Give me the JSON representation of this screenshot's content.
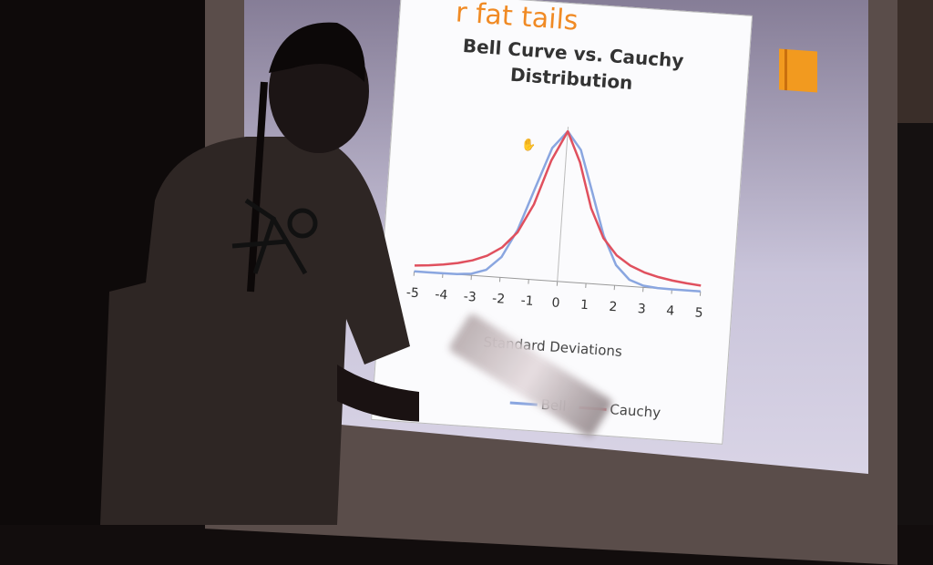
{
  "slide": {
    "heading_fragment": "r fat tails",
    "accent_color": "#f29a1f"
  },
  "chart_data": {
    "type": "line",
    "title": "Bell Curve vs. Cauchy Distribution",
    "title_line1": "Bell Curve vs. Cauchy",
    "title_line2": "Distribution",
    "xlabel": "Standard Deviations",
    "ylabel": "",
    "xlim": [
      -5,
      5
    ],
    "xticks": [
      "-5",
      "-4",
      "-3",
      "-2",
      "-1",
      "0",
      "1",
      "2",
      "3",
      "4",
      "5"
    ],
    "grid": false,
    "legend_placement": "bottom",
    "x": [
      -5,
      -4.5,
      -4,
      -3.5,
      -3,
      -2.5,
      -2,
      -1.5,
      -1,
      -0.5,
      0,
      0.5,
      1,
      1.5,
      2,
      2.5,
      3,
      3.5,
      4,
      4.5,
      5
    ],
    "series": [
      {
        "name": "Bell",
        "color": "#8aa6e0",
        "values": [
          0,
          0,
          0.0003,
          0.0022,
          0.0111,
          0.0439,
          0.1353,
          0.3247,
          0.6065,
          0.8825,
          1,
          0.8825,
          0.6065,
          0.3247,
          0.1353,
          0.0439,
          0.0111,
          0.0022,
          0.0003,
          0,
          0
        ]
      },
      {
        "name": "Cauchy",
        "color": "#e0505e",
        "values": [
          0.0385,
          0.0471,
          0.0588,
          0.0755,
          0.1,
          0.1379,
          0.2,
          0.3077,
          0.5,
          0.8,
          1,
          0.8,
          0.5,
          0.3077,
          0.2,
          0.1379,
          0.1,
          0.0755,
          0.0588,
          0.0471,
          0.0385
        ]
      }
    ]
  }
}
